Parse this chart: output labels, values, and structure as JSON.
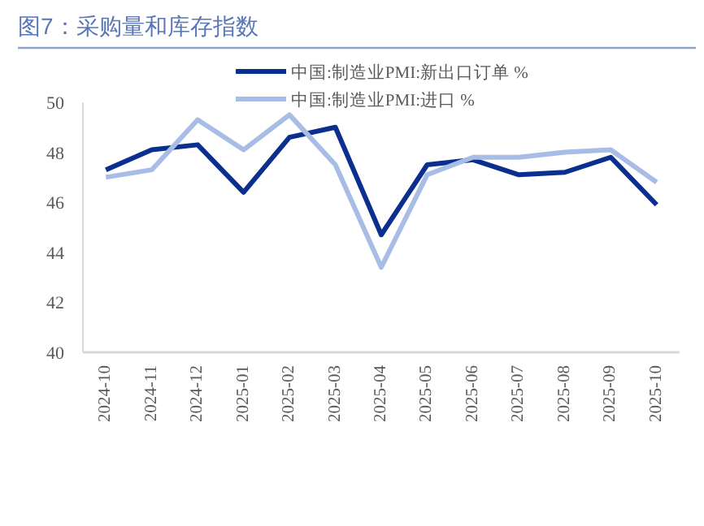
{
  "chart_data": {
    "type": "line",
    "title": "图7：采购量和库存指数",
    "categories": [
      "2024-10",
      "2024-11",
      "2024-12",
      "2025-01",
      "2025-02",
      "2025-03",
      "2025-04",
      "2025-05",
      "2025-06",
      "2025-07",
      "2025-08",
      "2025-09",
      "2025-10"
    ],
    "series": [
      {
        "name": "中国:制造业PMI:新出口订单 %",
        "color": "#0b2f8f",
        "values": [
          47.3,
          48.1,
          48.3,
          46.4,
          48.6,
          49.0,
          44.7,
          47.5,
          47.7,
          47.1,
          47.2,
          47.8,
          45.9
        ]
      },
      {
        "name": "中国:制造业PMI:进口 %",
        "color": "#a8bde6",
        "values": [
          47.0,
          47.3,
          49.3,
          48.1,
          49.5,
          47.5,
          43.4,
          47.1,
          47.8,
          47.8,
          48.0,
          48.1,
          46.8
        ]
      }
    ],
    "ylim": [
      40,
      50
    ],
    "yticks": [
      40,
      42,
      44,
      46,
      48,
      50
    ],
    "legend": "top"
  }
}
